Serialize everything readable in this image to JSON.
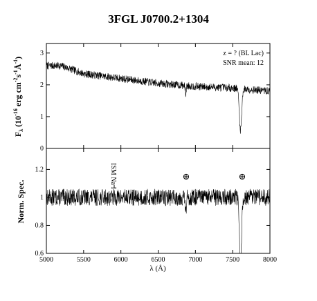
{
  "title": "3FGL J0700.2+1304",
  "annotation_z": "z = ? (BL Lac)",
  "annotation_snr": "SNR mean: 12",
  "ism_label": "ISM Na I",
  "telluric_symbol": "⊕",
  "chart_data": [
    {
      "type": "line",
      "panel": "top",
      "ylabel_main": "F",
      "ylabel_sub": "λ",
      "ylabel_rest": " (10",
      "ylabel_exp": "-16",
      "ylabel_units": " erg cm",
      "ylabel_units_exp1": "-2",
      "ylabel_s": "s",
      "ylabel_s_exp": "-1",
      "ylabel_A": "Å",
      "ylabel_A_exp": "-1",
      "ylabel_close": ")",
      "xlim": [
        5000,
        8000
      ],
      "ylim": [
        0,
        3.3
      ],
      "yticks": [
        0,
        1,
        2,
        3
      ],
      "ytick_labels": [
        "0",
        "1",
        "2",
        "3"
      ],
      "continuum": [
        [
          5000,
          2.6
        ],
        [
          5200,
          2.6
        ],
        [
          5500,
          2.35
        ],
        [
          6000,
          2.2
        ],
        [
          6500,
          2.05
        ],
        [
          7000,
          1.95
        ],
        [
          7500,
          1.9
        ],
        [
          8000,
          1.8
        ]
      ],
      "noise_amplitude": 0.12,
      "features": [
        {
          "wavelength": 7605,
          "depth": 1.3,
          "width": 22,
          "kind": "telluric A-band"
        },
        {
          "wavelength": 6870,
          "depth": 0.25,
          "width": 10,
          "kind": "telluric B-band"
        }
      ]
    },
    {
      "type": "line",
      "panel": "bottom",
      "ylabel": "Norm. Spec.",
      "xlabel": "λ (Å)",
      "xlim": [
        5000,
        8000
      ],
      "ylim": [
        0.6,
        1.35
      ],
      "yticks": [
        0.6,
        0.8,
        1.0,
        1.2
      ],
      "ytick_labels": [
        "0.6",
        "0.8",
        "1",
        "1.2"
      ],
      "xticks": [
        5000,
        5500,
        6000,
        6500,
        7000,
        7500,
        8000
      ],
      "xtick_labels": [
        "5000",
        "5500",
        "6000",
        "6500",
        "7000",
        "7500",
        "8000"
      ],
      "continuum": [
        [
          5000,
          1.0
        ],
        [
          8000,
          1.0
        ]
      ],
      "noise_amplitude": 0.06,
      "features": [
        {
          "wavelength": 7605,
          "depth": 0.45,
          "width": 22,
          "kind": "telluric A-band"
        },
        {
          "wavelength": 6870,
          "depth": 0.12,
          "width": 10,
          "kind": "telluric B-band"
        }
      ],
      "markers": [
        {
          "label": "ISM Na I",
          "wavelength": 5893
        },
        {
          "label": "⊕",
          "wavelength": 6870
        },
        {
          "label": "⊕",
          "wavelength": 7630
        }
      ]
    }
  ]
}
